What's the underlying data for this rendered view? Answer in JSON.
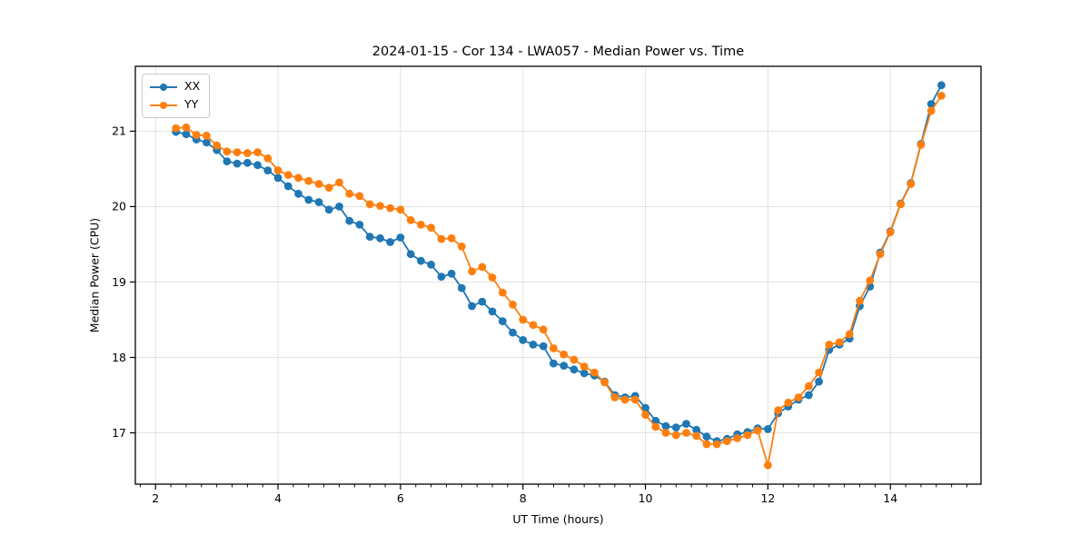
{
  "chart_meta": {
    "title": "2024-01-15 - Cor 134 - LWA057 - Median Power vs. Time",
    "xlabel": "UT Time (hours)",
    "ylabel": "Median Power (CPU)"
  },
  "colors": {
    "series_xx": "#1f77b4",
    "series_yy": "#ff7f0e",
    "grid": "#e2e2e2",
    "spine": "#000000",
    "text": "#000000",
    "legend_border": "#cccccc",
    "background": "#ffffff"
  },
  "chart_data": {
    "type": "line",
    "title": "2024-01-15 - Cor 134 - LWA057 - Median Power vs. Time",
    "xlabel": "UT Time (hours)",
    "ylabel": "Median Power (CPU)",
    "xlim": [
      1.67,
      15.48
    ],
    "ylim": [
      16.32,
      21.86
    ],
    "x_major_ticks": [
      2,
      4,
      6,
      8,
      10,
      12,
      14
    ],
    "x_minor_step": 0.25,
    "y_major_ticks": [
      17,
      18,
      19,
      20,
      21
    ],
    "grid": "major-both",
    "legend_position": "upper-left",
    "marker": "circle",
    "x": [
      2.333,
      2.5,
      2.667,
      2.833,
      3.0,
      3.167,
      3.333,
      3.5,
      3.667,
      3.833,
      4.0,
      4.167,
      4.333,
      4.5,
      4.667,
      4.833,
      5.0,
      5.167,
      5.333,
      5.5,
      5.667,
      5.833,
      6.0,
      6.167,
      6.333,
      6.5,
      6.667,
      6.833,
      7.0,
      7.167,
      7.333,
      7.5,
      7.667,
      7.833,
      8.0,
      8.167,
      8.333,
      8.5,
      8.667,
      8.833,
      9.0,
      9.167,
      9.333,
      9.5,
      9.667,
      9.833,
      10.0,
      10.167,
      10.333,
      10.5,
      10.667,
      10.833,
      11.0,
      11.167,
      11.333,
      11.5,
      11.667,
      11.833,
      12.0,
      12.167,
      12.333,
      12.5,
      12.667,
      12.833,
      13.0,
      13.167,
      13.333,
      13.5,
      13.667,
      13.833,
      14.0,
      14.167,
      14.333,
      14.5,
      14.667,
      14.833
    ],
    "series": [
      {
        "name": "XX",
        "color": "#1f77b4",
        "values": [
          20.99,
          20.96,
          20.89,
          20.85,
          20.75,
          20.6,
          20.57,
          20.58,
          20.55,
          20.48,
          20.38,
          20.27,
          20.17,
          20.09,
          20.06,
          19.96,
          20.0,
          19.81,
          19.76,
          19.6,
          19.58,
          19.53,
          19.59,
          19.37,
          19.28,
          19.23,
          19.07,
          19.11,
          18.92,
          18.68,
          18.74,
          18.61,
          18.48,
          18.33,
          18.23,
          18.17,
          18.15,
          17.92,
          17.89,
          17.84,
          17.79,
          17.76,
          17.68,
          17.5,
          17.47,
          17.49,
          17.33,
          17.16,
          17.09,
          17.07,
          17.12,
          17.04,
          16.95,
          16.89,
          16.92,
          16.98,
          17.01,
          17.06,
          17.05,
          17.26,
          17.35,
          17.44,
          17.5,
          17.68,
          18.1,
          18.17,
          18.25,
          18.68,
          18.94,
          19.39,
          19.67,
          20.04,
          20.31,
          20.83,
          21.36,
          21.61
        ]
      },
      {
        "name": "YY",
        "color": "#ff7f0e",
        "values": [
          21.04,
          21.05,
          20.95,
          20.94,
          20.81,
          20.73,
          20.72,
          20.71,
          20.72,
          20.64,
          20.48,
          20.42,
          20.38,
          20.34,
          20.3,
          20.25,
          20.32,
          20.17,
          20.14,
          20.03,
          20.01,
          19.98,
          19.96,
          19.82,
          19.76,
          19.72,
          19.57,
          19.58,
          19.47,
          19.14,
          19.2,
          19.06,
          18.86,
          18.7,
          18.5,
          18.43,
          18.37,
          18.12,
          18.04,
          17.97,
          17.88,
          17.8,
          17.67,
          17.47,
          17.44,
          17.44,
          17.24,
          17.08,
          17.0,
          16.97,
          17.0,
          16.96,
          16.85,
          16.85,
          16.89,
          16.93,
          16.97,
          17.03,
          16.57,
          17.3,
          17.4,
          17.47,
          17.62,
          17.8,
          18.17,
          18.2,
          18.31,
          18.75,
          19.02,
          19.37,
          19.66,
          20.03,
          20.3,
          20.82,
          21.27,
          21.47
        ]
      }
    ]
  }
}
